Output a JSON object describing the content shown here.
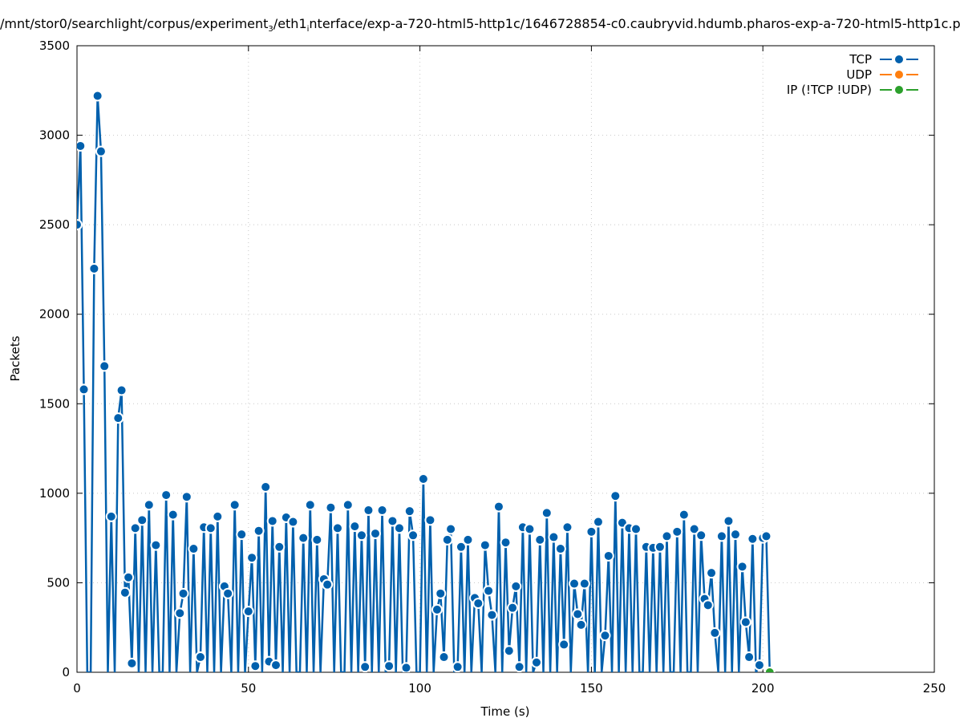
{
  "title": {
    "part1": "/mnt/stor0/searchlight/corpus/experiment",
    "sub1": "3",
    "part2": "/eth1",
    "sub2": "i",
    "part3": "nterface/exp-a-720-html5-http1c/1646728854-c0.caubryvid.hdumb.pharos-exp-a-720-html5-http1c.p"
  },
  "chart_data": {
    "type": "line",
    "title": "/mnt/stor0/searchlight/corpus/experiment_3/eth1_interface/exp-a-720-html5-http1c/1646728854-c0.caubryvid.hdumb.pharos-exp-a-720-html5-http1c.p",
    "xlabel": "Time (s)",
    "ylabel": "Packets",
    "xlim": [
      0,
      250
    ],
    "ylim": [
      0,
      3500
    ],
    "xticks": [
      0,
      50,
      100,
      150,
      200,
      250
    ],
    "yticks": [
      0,
      500,
      1000,
      1500,
      2000,
      2500,
      3000,
      3500
    ],
    "grid": true,
    "legend_position": "top-right",
    "series": [
      {
        "name": "TCP",
        "color": "#0060ad",
        "x_start": 0,
        "values": [
          2500,
          2940,
          1580,
          0,
          0,
          2255,
          3220,
          2910,
          1710,
          0,
          870,
          0,
          1420,
          1575,
          445,
          530,
          50,
          805,
          0,
          850,
          0,
          935,
          0,
          710,
          0,
          0,
          990,
          0,
          880,
          0,
          330,
          440,
          980,
          0,
          690,
          0,
          85,
          810,
          0,
          805,
          0,
          870,
          0,
          480,
          440,
          0,
          935,
          0,
          770,
          0,
          340,
          640,
          35,
          790,
          0,
          1035,
          60,
          845,
          40,
          700,
          0,
          865,
          0,
          840,
          0,
          0,
          750,
          0,
          935,
          0,
          740,
          0,
          520,
          490,
          920,
          0,
          805,
          0,
          0,
          935,
          0,
          815,
          0,
          765,
          30,
          905,
          0,
          775,
          0,
          905,
          0,
          35,
          845,
          0,
          805,
          0,
          25,
          900,
          765,
          0,
          0,
          1080,
          0,
          850,
          0,
          350,
          440,
          85,
          740,
          800,
          0,
          30,
          700,
          0,
          740,
          0,
          415,
          385,
          0,
          710,
          455,
          320,
          0,
          925,
          0,
          725,
          120,
          360,
          480,
          30,
          810,
          0,
          800,
          0,
          55,
          740,
          0,
          890,
          0,
          755,
          0,
          690,
          155,
          810,
          0,
          495,
          325,
          265,
          495,
          0,
          785,
          0,
          840,
          0,
          205,
          650,
          0,
          985,
          0,
          835,
          0,
          805,
          0,
          800,
          0,
          0,
          700,
          0,
          695,
          0,
          700,
          0,
          760,
          0,
          0,
          785,
          0,
          880,
          0,
          0,
          800,
          0,
          765,
          410,
          375,
          555,
          220,
          0,
          760,
          0,
          845,
          0,
          770,
          0,
          590,
          280,
          85,
          745,
          0,
          40,
          750,
          760,
          0
        ]
      },
      {
        "name": "UDP",
        "color": "#ff7f0e",
        "x_start": 0,
        "values": []
      },
      {
        "name": "IP (!TCP  !UDP)",
        "color": "#2ca02c",
        "x_start": 202,
        "values": [
          0
        ]
      }
    ]
  }
}
